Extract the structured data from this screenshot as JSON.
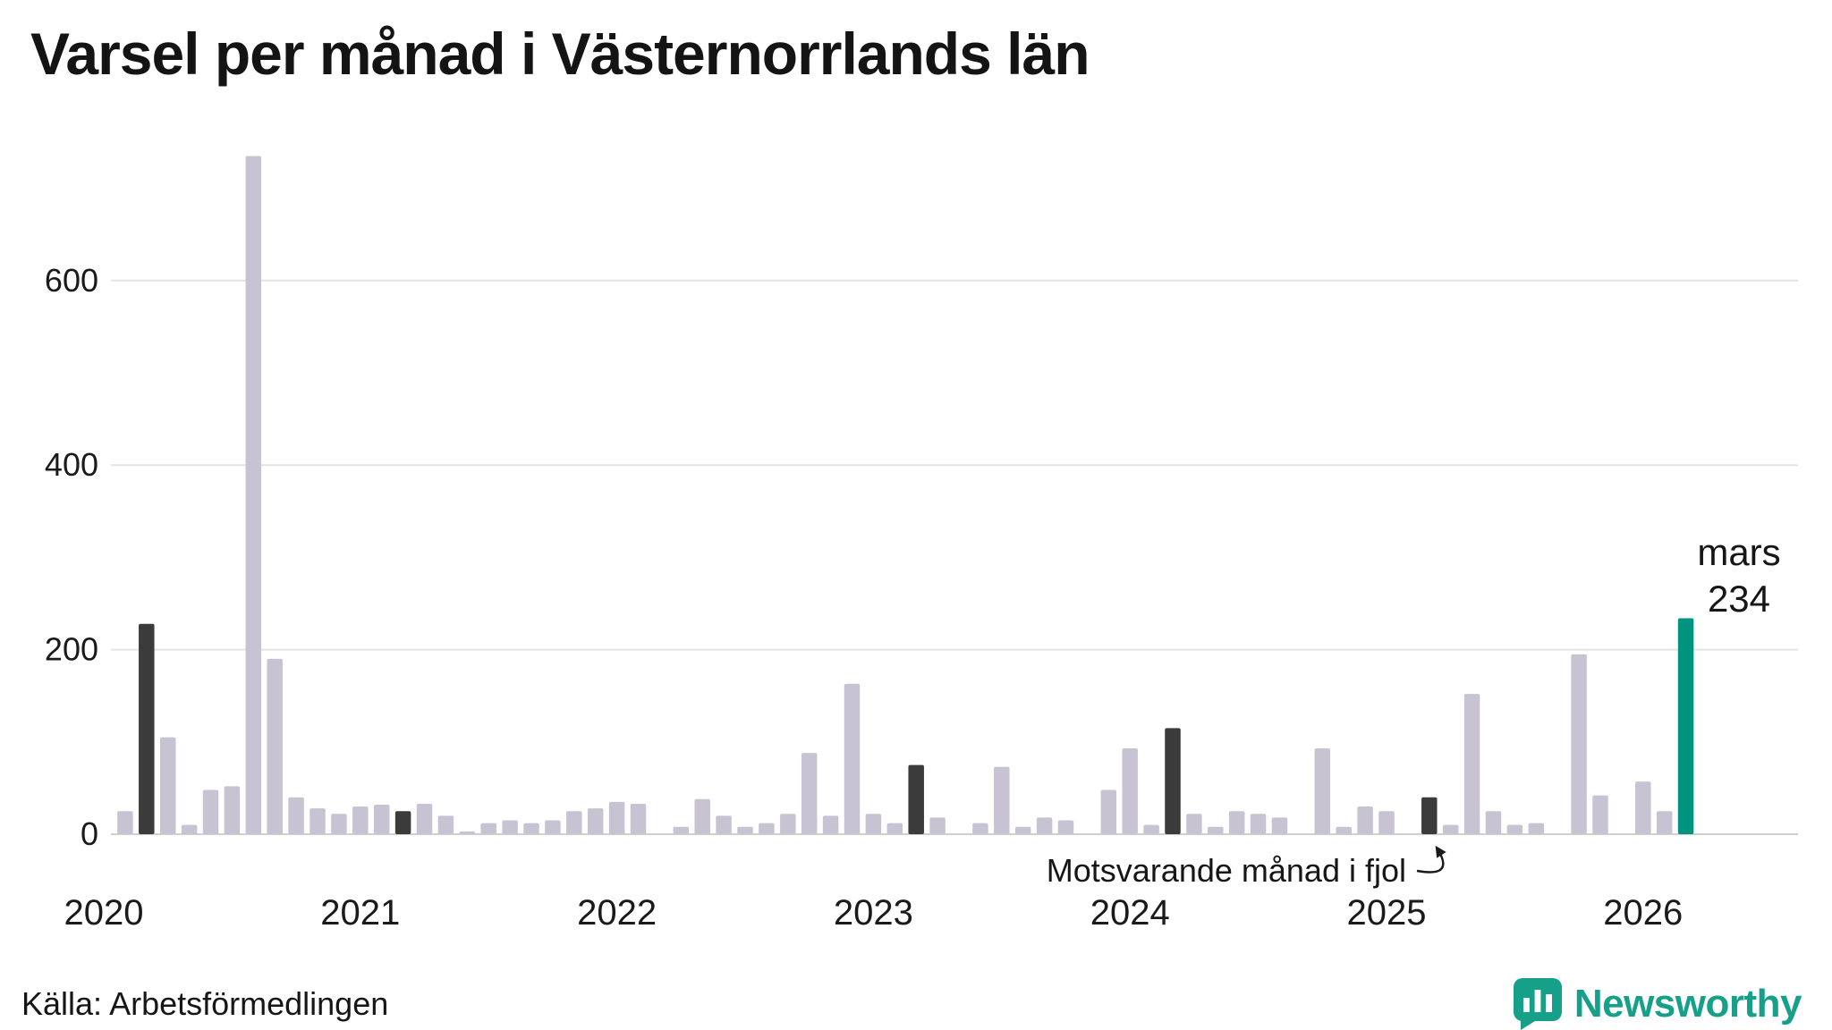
{
  "page": {
    "title": "Varsel per månad i Västernorrlands län",
    "source": "Källa: Arbetsförmedlingen",
    "brand": "Newsworthy"
  },
  "annotation": {
    "comparison_text": "Motsvarande månad i fjol",
    "comparison_target_month": "2025-03",
    "highlight_month_label": "mars",
    "highlight_value_label": "234"
  },
  "colors": {
    "bar": "#c8c3d2",
    "bar_dark": "#3b3b3b",
    "bar_highlight": "#00947e",
    "brand": "#17a089",
    "grid": "#e4e4e4",
    "grid_zero": "#cfcfcf",
    "text": "#1a1a1a"
  },
  "chart_data": {
    "type": "bar",
    "title": "Varsel per månad i Västernorrlands län",
    "xlabel": "",
    "ylabel": "",
    "ylim": [
      0,
      760
    ],
    "yticks": [
      0,
      200,
      400,
      600
    ],
    "grid": true,
    "legend_position": "none",
    "year_ticks": [
      "2020",
      "2021",
      "2022",
      "2023",
      "2024",
      "2025",
      "2026"
    ],
    "months": [
      "2020-01",
      "2020-02",
      "2020-03",
      "2020-04",
      "2020-05",
      "2020-06",
      "2020-07",
      "2020-08",
      "2020-09",
      "2020-10",
      "2020-11",
      "2020-12",
      "2021-01",
      "2021-02",
      "2021-03",
      "2021-04",
      "2021-05",
      "2021-06",
      "2021-07",
      "2021-08",
      "2021-09",
      "2021-10",
      "2021-11",
      "2021-12",
      "2022-01",
      "2022-02",
      "2022-03",
      "2022-04",
      "2022-05",
      "2022-06",
      "2022-07",
      "2022-08",
      "2022-09",
      "2022-10",
      "2022-11",
      "2022-12",
      "2023-01",
      "2023-02",
      "2023-03",
      "2023-04",
      "2023-05",
      "2023-06",
      "2023-07",
      "2023-08",
      "2023-09",
      "2023-10",
      "2023-11",
      "2023-12",
      "2024-01",
      "2024-02",
      "2024-03",
      "2024-04",
      "2024-05",
      "2024-06",
      "2024-07",
      "2024-08",
      "2024-09",
      "2024-10",
      "2024-11",
      "2024-12",
      "2025-01",
      "2025-02",
      "2025-03",
      "2025-04",
      "2025-05",
      "2025-06",
      "2025-07",
      "2025-08",
      "2025-09",
      "2025-10",
      "2025-11",
      "2025-12",
      "2026-01",
      "2026-02",
      "2026-03"
    ],
    "values": [
      0,
      25,
      228,
      105,
      10,
      48,
      52,
      735,
      190,
      40,
      28,
      22,
      30,
      32,
      25,
      33,
      20,
      3,
      12,
      15,
      12,
      15,
      25,
      28,
      35,
      33,
      0,
      8,
      38,
      20,
      8,
      12,
      22,
      88,
      20,
      163,
      22,
      12,
      75,
      18,
      0,
      12,
      73,
      8,
      18,
      15,
      0,
      48,
      93,
      10,
      115,
      22,
      8,
      25,
      22,
      18,
      0,
      93,
      8,
      30,
      25,
      0,
      40,
      10,
      152,
      25,
      10,
      12,
      0,
      195,
      42,
      0,
      57,
      25,
      234
    ],
    "dark_indices": [
      2,
      14,
      26,
      38,
      50,
      62
    ],
    "highlight_index": 74,
    "highlight_value": 234
  }
}
